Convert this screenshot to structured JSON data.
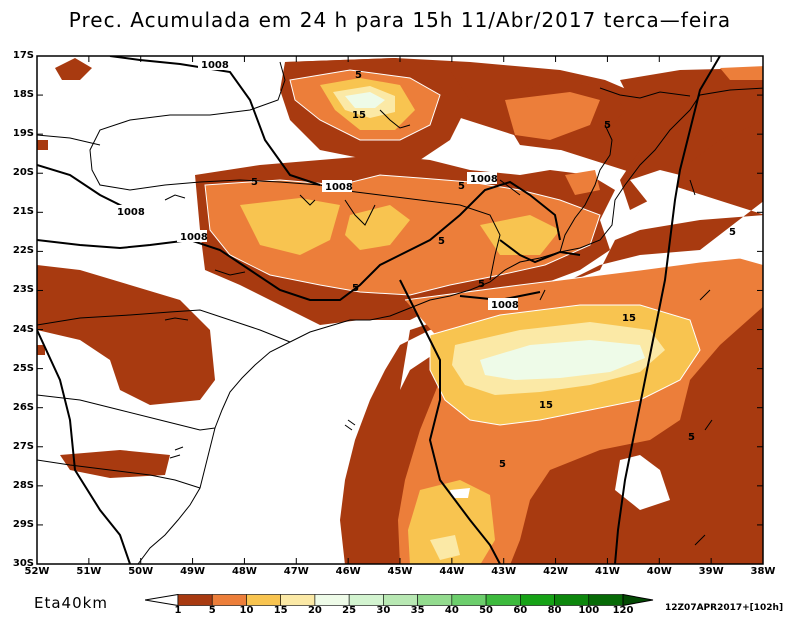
{
  "title": "Prec. Acumulada em 24 h para 15h 11/Abr/2017 terca—feira",
  "model_label": "Eta40km",
  "run_label": "12Z07APR2017+[102h]",
  "lat_labels": [
    "17S",
    "18S",
    "19S",
    "20S",
    "21S",
    "22S",
    "23S",
    "24S",
    "25S",
    "26S",
    "27S",
    "28S",
    "29S",
    "30S"
  ],
  "lon_labels": [
    "52W",
    "51W",
    "50W",
    "49W",
    "48W",
    "47W",
    "46W",
    "45W",
    "44W",
    "43W",
    "42W",
    "41W",
    "40W",
    "39W",
    "38W"
  ],
  "colorbar": {
    "ticks": [
      "1",
      "5",
      "10",
      "15",
      "20",
      "25",
      "30",
      "35",
      "40",
      "50",
      "60",
      "80",
      "100",
      "120"
    ],
    "colors": [
      "#a83a10",
      "#ec7e3a",
      "#f8c450",
      "#fbe9a6",
      "#eefbe8",
      "#d3f4d0",
      "#b8e8b3",
      "#93db8e",
      "#6cce6c",
      "#3dba3d",
      "#16a216",
      "#0d870d",
      "#076a07",
      "#044a04"
    ]
  },
  "contour_labels": {
    "pressure": [
      "1008",
      "1008",
      "1008",
      "1008",
      "1008"
    ],
    "precip": [
      "5",
      "15",
      "5",
      "5",
      "5",
      "5",
      "5",
      "15",
      "15",
      "5",
      "5",
      "5"
    ]
  }
}
